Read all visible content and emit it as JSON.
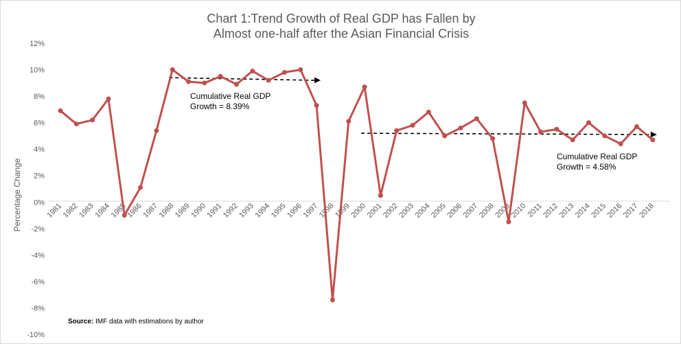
{
  "chart_data": {
    "type": "line",
    "title_lines": [
      "Chart 1:Trend Growth of Real GDP has Fallen by",
      "Almost one-half after the Asian Financial Crisis"
    ],
    "ylabel": "Percentage Change",
    "xlabel": "",
    "ylim": [
      -10,
      12
    ],
    "y_ticks": [
      -10,
      -8,
      -6,
      -4,
      -2,
      0,
      2,
      4,
      6,
      8,
      10,
      12
    ],
    "y_tick_labels": [
      "-10%",
      "-8%",
      "-6%",
      "-4%",
      "-2%",
      "0%",
      "2%",
      "4%",
      "6%",
      "8%",
      "10%",
      "12%"
    ],
    "x": [
      "1981",
      "1982",
      "1983",
      "1984",
      "1985",
      "1986",
      "1987",
      "1988",
      "1989",
      "1990",
      "1991",
      "1992",
      "1993",
      "1994",
      "1995",
      "1996",
      "1997",
      "1998",
      "1999",
      "2000",
      "2001",
      "2002",
      "2003",
      "2004",
      "2005",
      "2006",
      "2007",
      "2008",
      "2009",
      "2010",
      "2011",
      "2012",
      "2013",
      "2014",
      "2015",
      "2016",
      "2017",
      "2018"
    ],
    "series": [
      {
        "color": "#c0504d",
        "values": [
          6.9,
          5.9,
          6.2,
          7.8,
          -1.0,
          1.1,
          5.4,
          10.0,
          9.1,
          9.0,
          9.5,
          8.9,
          9.9,
          9.2,
          9.8,
          10.0,
          7.3,
          -7.4,
          6.1,
          8.7,
          0.5,
          5.4,
          5.8,
          6.8,
          5.0,
          5.6,
          6.3,
          4.8,
          -1.5,
          7.5,
          5.3,
          5.5,
          4.7,
          6.0,
          5.0,
          4.4,
          5.7,
          4.7
        ]
      }
    ],
    "trend_lines": [
      {
        "from_year": "1988",
        "to_year": "1997",
        "y_start": 9.4,
        "y_end": 9.2,
        "color": "#000000",
        "style": "dashed"
      },
      {
        "from_year": "2000",
        "to_year": "2018",
        "y_start": 5.2,
        "y_end": 5.1,
        "color": "#000000",
        "style": "dashed"
      }
    ],
    "annotations": [
      {
        "text_line1": "Cumulative  Real  GDP",
        "text_line2": "Growth  = 8.39%"
      },
      {
        "text_line1": "Cumulative  Real  GDP",
        "text_line2": "Growth  = 4.58%"
      }
    ],
    "source_label": "Source:",
    "source_text": " IMF data with estimations by author",
    "grid": false,
    "legend": "none"
  }
}
